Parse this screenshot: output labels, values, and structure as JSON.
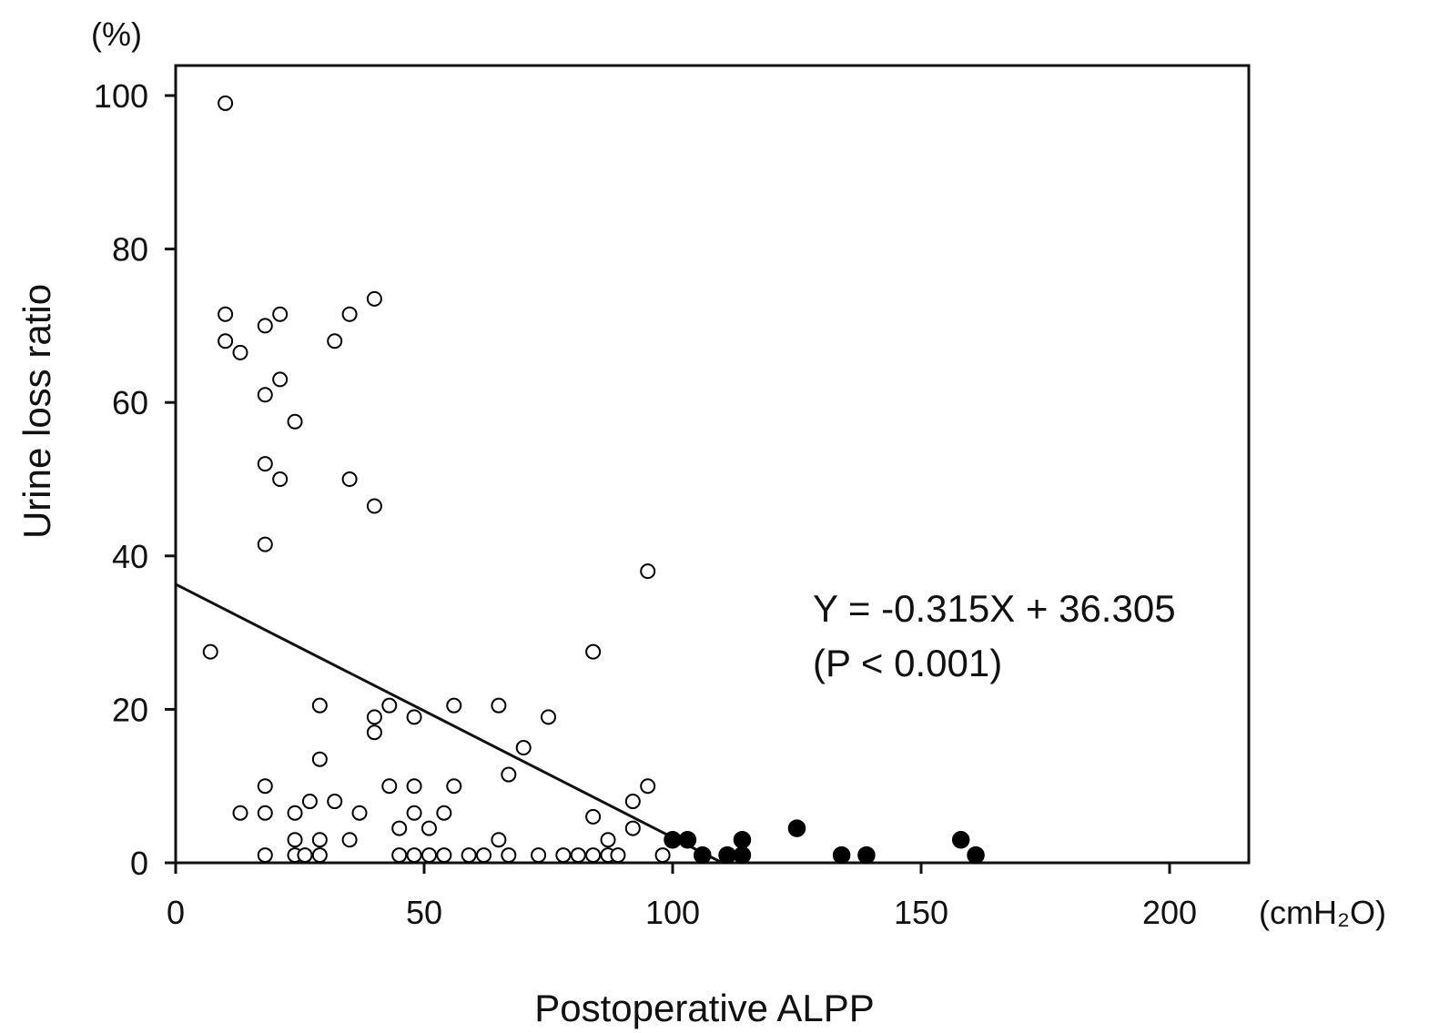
{
  "chart_data": {
    "type": "scatter",
    "xlabel": "Postoperative ALPP",
    "ylabel": "Urine loss ratio",
    "x_unit": "(cmH₂O)",
    "y_unit": "(%)",
    "xlim": [
      0,
      214
    ],
    "ylim": [
      0,
      103
    ],
    "x_ticks": [
      0,
      50,
      100,
      150,
      200
    ],
    "y_ticks": [
      0,
      20,
      40,
      60,
      80,
      100
    ],
    "grid": false,
    "annotations": {
      "equation": "Y = -0.315X  + 36.305",
      "pvalue": "(P < 0.001)"
    },
    "regression": {
      "slope": -0.315,
      "intercept": 36.305,
      "x_start": 0,
      "x_end": 110,
      "y_end": 0
    },
    "baseline": {
      "x_start": 40,
      "x_end": 214,
      "y": 0
    },
    "series": [
      {
        "marker": "open-circle",
        "points": [
          [
            10,
            99
          ],
          [
            7,
            27.5
          ],
          [
            10,
            71.5
          ],
          [
            10,
            68
          ],
          [
            13,
            66.5
          ],
          [
            18,
            70
          ],
          [
            21,
            71.5
          ],
          [
            18,
            61
          ],
          [
            21,
            63
          ],
          [
            24,
            57.5
          ],
          [
            18,
            52
          ],
          [
            21,
            50
          ],
          [
            18,
            41.5
          ],
          [
            32,
            68
          ],
          [
            35,
            71.5
          ],
          [
            35,
            50
          ],
          [
            40,
            73.5
          ],
          [
            40,
            46.5
          ],
          [
            95,
            38
          ],
          [
            84,
            27.5
          ],
          [
            29,
            20.5
          ],
          [
            29,
            13.5
          ],
          [
            40,
            19
          ],
          [
            40,
            17
          ],
          [
            43,
            20.5
          ],
          [
            48,
            19
          ],
          [
            56,
            20.5
          ],
          [
            65,
            20.5
          ],
          [
            70,
            15
          ],
          [
            75,
            19
          ],
          [
            67,
            11.5
          ],
          [
            18,
            10
          ],
          [
            43,
            10
          ],
          [
            48,
            10
          ],
          [
            56,
            10
          ],
          [
            95,
            10
          ],
          [
            13,
            6.5
          ],
          [
            18,
            6.5
          ],
          [
            24,
            6.5
          ],
          [
            27,
            8
          ],
          [
            32,
            8
          ],
          [
            37,
            6.5
          ],
          [
            45,
            4.5
          ],
          [
            48,
            6.5
          ],
          [
            51,
            4.5
          ],
          [
            54,
            6.5
          ],
          [
            84,
            6
          ],
          [
            92,
            8
          ],
          [
            92,
            4.5
          ],
          [
            24,
            3
          ],
          [
            29,
            3
          ],
          [
            35,
            3
          ],
          [
            65,
            3
          ],
          [
            87,
            3
          ],
          [
            18,
            1
          ],
          [
            24,
            1
          ],
          [
            26,
            1
          ],
          [
            29,
            1
          ],
          [
            45,
            1
          ],
          [
            48,
            1
          ],
          [
            51,
            1
          ],
          [
            54,
            1
          ],
          [
            59,
            1
          ],
          [
            62,
            1
          ],
          [
            67,
            1
          ],
          [
            73,
            1
          ],
          [
            78,
            1
          ],
          [
            81,
            1
          ],
          [
            84,
            1
          ],
          [
            87,
            1
          ],
          [
            89,
            1
          ],
          [
            98,
            1
          ]
        ]
      },
      {
        "marker": "filled-circle",
        "points": [
          [
            100,
            3
          ],
          [
            103,
            3
          ],
          [
            106,
            1
          ],
          [
            111,
            1
          ],
          [
            114,
            1
          ],
          [
            114,
            3
          ],
          [
            125,
            4.5
          ],
          [
            134,
            1
          ],
          [
            139,
            1
          ],
          [
            158,
            3
          ],
          [
            161,
            1
          ]
        ]
      }
    ]
  }
}
